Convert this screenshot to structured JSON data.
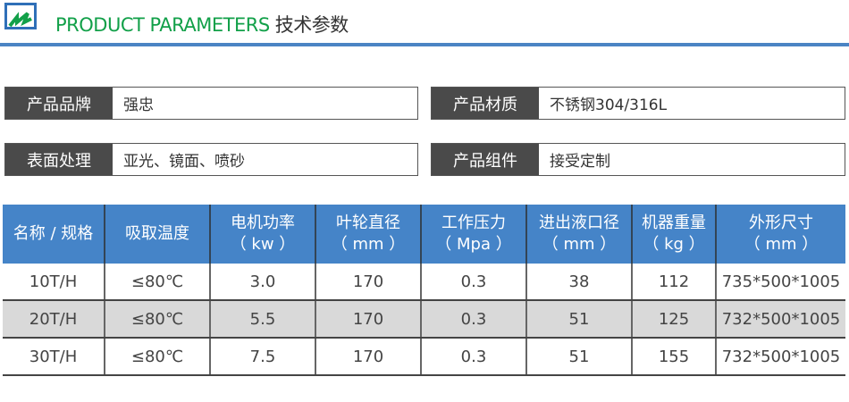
{
  "header": {
    "title_en": "PRODUCT PARAMETERS",
    "title_cn": "技术参数",
    "accent": "#12a049",
    "rule_color": "#4b84c4"
  },
  "info": [
    {
      "label": "产品品牌",
      "value": "强忠"
    },
    {
      "label": "产品材质",
      "value": "不锈钢304/316L"
    },
    {
      "label": "表面处理",
      "value": "亚光、镜面、喷砂"
    },
    {
      "label": "产品组件",
      "value": "接受定制"
    }
  ],
  "table": {
    "headers": [
      [
        "名称 / 规格",
        ""
      ],
      [
        "吸取温度",
        ""
      ],
      [
        "电机功率",
        "（ kw ）"
      ],
      [
        "叶轮直径",
        "（ mm ）"
      ],
      [
        "工作压力",
        "（ Mpa ）"
      ],
      [
        "进出液口径",
        "（ mm ）"
      ],
      [
        "机器重量",
        "（ kg ）"
      ],
      [
        "外形尺寸",
        "（ mm ）"
      ]
    ],
    "rows": [
      [
        "10T/H",
        "≤80℃",
        "3.0",
        "170",
        "0.3",
        "38",
        "112",
        "735*500*1005"
      ],
      [
        "20T/H",
        "≤80℃",
        "5.5",
        "170",
        "0.3",
        "51",
        "125",
        "732*500*1005"
      ],
      [
        "30T/H",
        "≤80℃",
        "7.5",
        "170",
        "0.3",
        "51",
        "155",
        "732*500*1005"
      ]
    ]
  }
}
